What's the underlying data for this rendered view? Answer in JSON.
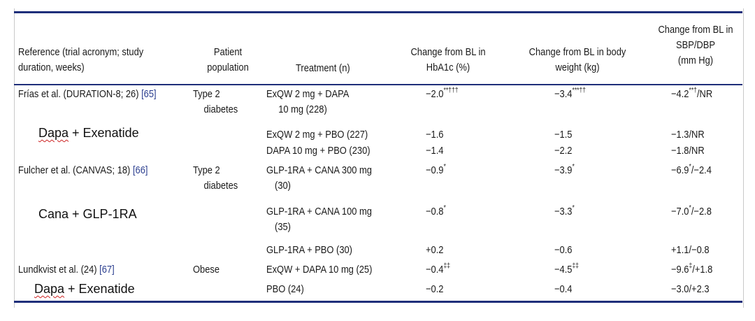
{
  "header": {
    "reference": [
      "Reference (trial acronym; study",
      "duration, weeks)"
    ],
    "population": [
      "Patient",
      "population"
    ],
    "treatment": "Treatment (n)",
    "hba1c": [
      "Change from BL in",
      "HbA1c (%)"
    ],
    "weight": [
      "Change from BL in body",
      "weight (kg)"
    ],
    "sbp": [
      "Change from BL in",
      "SBP/DBP",
      "(mm Hg)"
    ]
  },
  "rows": [
    {
      "ref": "Frías et al. (DURATION-8; 26)",
      "ref_num": "[65]",
      "pop": [
        "Type 2",
        "diabetes"
      ],
      "treat": [
        "ExQW 2 mg + DAPA",
        "10 mg (228)"
      ],
      "hba1c": "−2.0",
      "hba1c_sup": "**†††",
      "weight": "−3.4",
      "weight_sup": "***††",
      "sbp": "−4.2",
      "sbp_sup": "**†",
      "sbp_rest": "/NR"
    },
    {
      "treat": [
        "ExQW 2 mg + PBO (227)"
      ],
      "hba1c": "−1.6",
      "weight": "−1.5",
      "sbp": "−1.3/NR"
    },
    {
      "treat": [
        "DAPA 10 mg + PBO (230)"
      ],
      "hba1c": "−1.4",
      "weight": "−2.2",
      "sbp": "−1.8/NR"
    },
    {
      "ref": "Fulcher et al. (CANVAS; 18)",
      "ref_num": "[66]",
      "pop": [
        "Type 2",
        "diabetes"
      ],
      "treat": [
        "GLP-1RA + CANA 300 mg",
        "(30)"
      ],
      "hba1c": "−0.9",
      "hba1c_sup": "*",
      "weight": "−3.9",
      "weight_sup": "*",
      "sbp": "−6.9",
      "sbp_sup": "*",
      "sbp_rest": "/−2.4"
    },
    {
      "treat": [
        "GLP-1RA + CANA 100 mg",
        "(35)"
      ],
      "hba1c": "−0.8",
      "hba1c_sup": "*",
      "weight": "−3.3",
      "weight_sup": "*",
      "sbp": "−7.0",
      "sbp_sup": "*",
      "sbp_rest": "/−2.8"
    },
    {
      "treat": [
        "GLP-1RA + PBO (30)"
      ],
      "hba1c": "+0.2",
      "weight": "−0.6",
      "sbp": "+1.1/−0.8"
    },
    {
      "ref": "Lundkvist et al. (24)",
      "ref_num": "[67]",
      "pop": [
        "Obese"
      ],
      "treat": [
        "ExQW + DAPA 10 mg (25)"
      ],
      "hba1c": "−0.4",
      "hba1c_sup": "‡‡",
      "weight": "−4.5",
      "weight_sup": "‡‡",
      "sbp": "−9.6",
      "sbp_sup": "‡",
      "sbp_rest": "/+1.8"
    },
    {
      "treat": [
        "PBO (24)"
      ],
      "hba1c": "−0.2",
      "weight": "−0.4",
      "sbp": "−3.0/+2.3"
    }
  ],
  "overlays": [
    {
      "w1": "Dapa",
      "rest": " + Exenatide"
    },
    {
      "w1": "",
      "rest": "Cana + GLP-1RA"
    },
    {
      "w1": "Dapa",
      "rest": " + Exenatide"
    }
  ]
}
